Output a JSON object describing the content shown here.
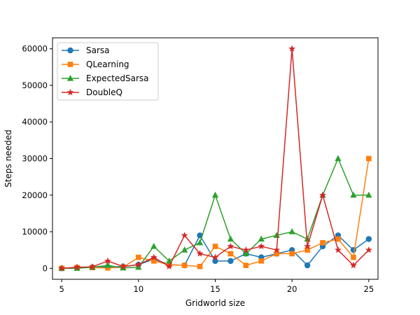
{
  "chart_data": {
    "type": "line",
    "title": "",
    "xlabel": "Gridworld size",
    "ylabel": "Steps needed",
    "xlim": [
      4.4,
      25.6
    ],
    "ylim": [
      -3000,
      63000
    ],
    "xticks": [
      5,
      10,
      15,
      20,
      25
    ],
    "yticks": [
      0,
      10000,
      20000,
      30000,
      40000,
      50000,
      60000
    ],
    "grid": false,
    "legend_position": "top-left",
    "x": [
      5,
      6,
      7,
      8,
      9,
      10,
      11,
      12,
      13,
      14,
      15,
      16,
      17,
      18,
      19,
      20,
      21,
      22,
      23,
      24,
      25
    ],
    "series": [
      {
        "name": "Sarsa",
        "color": "#1f77b4",
        "marker": "circle",
        "values": [
          0,
          200,
          300,
          400,
          500,
          1000,
          2500,
          1000,
          800,
          9000,
          2000,
          2000,
          4000,
          3000,
          4000,
          5000,
          800,
          6000,
          9000,
          5000,
          8000
        ]
      },
      {
        "name": "QLearning",
        "color": "#ff7f0e",
        "marker": "square",
        "values": [
          0,
          200,
          200,
          100,
          300,
          3000,
          2000,
          1000,
          800,
          500,
          6000,
          4000,
          800,
          2000,
          4000,
          4000,
          5000,
          7000,
          8000,
          3000,
          30000
        ]
      },
      {
        "name": "ExpectedSarsa",
        "color": "#2ca02c",
        "marker": "triangle",
        "values": [
          0,
          0,
          300,
          800,
          100,
          300,
          6000,
          2000,
          5000,
          7000,
          20000,
          8000,
          4000,
          8000,
          9000,
          10000,
          8000,
          20000,
          30000,
          20000,
          20000
        ]
      },
      {
        "name": "DoubleQ",
        "color": "#d62728",
        "marker": "star",
        "values": [
          0,
          300,
          400,
          2000,
          500,
          1000,
          3000,
          500,
          9000,
          4000,
          3000,
          6000,
          5000,
          6000,
          5000,
          60000,
          6000,
          20000,
          5000,
          800,
          5000
        ]
      }
    ]
  }
}
